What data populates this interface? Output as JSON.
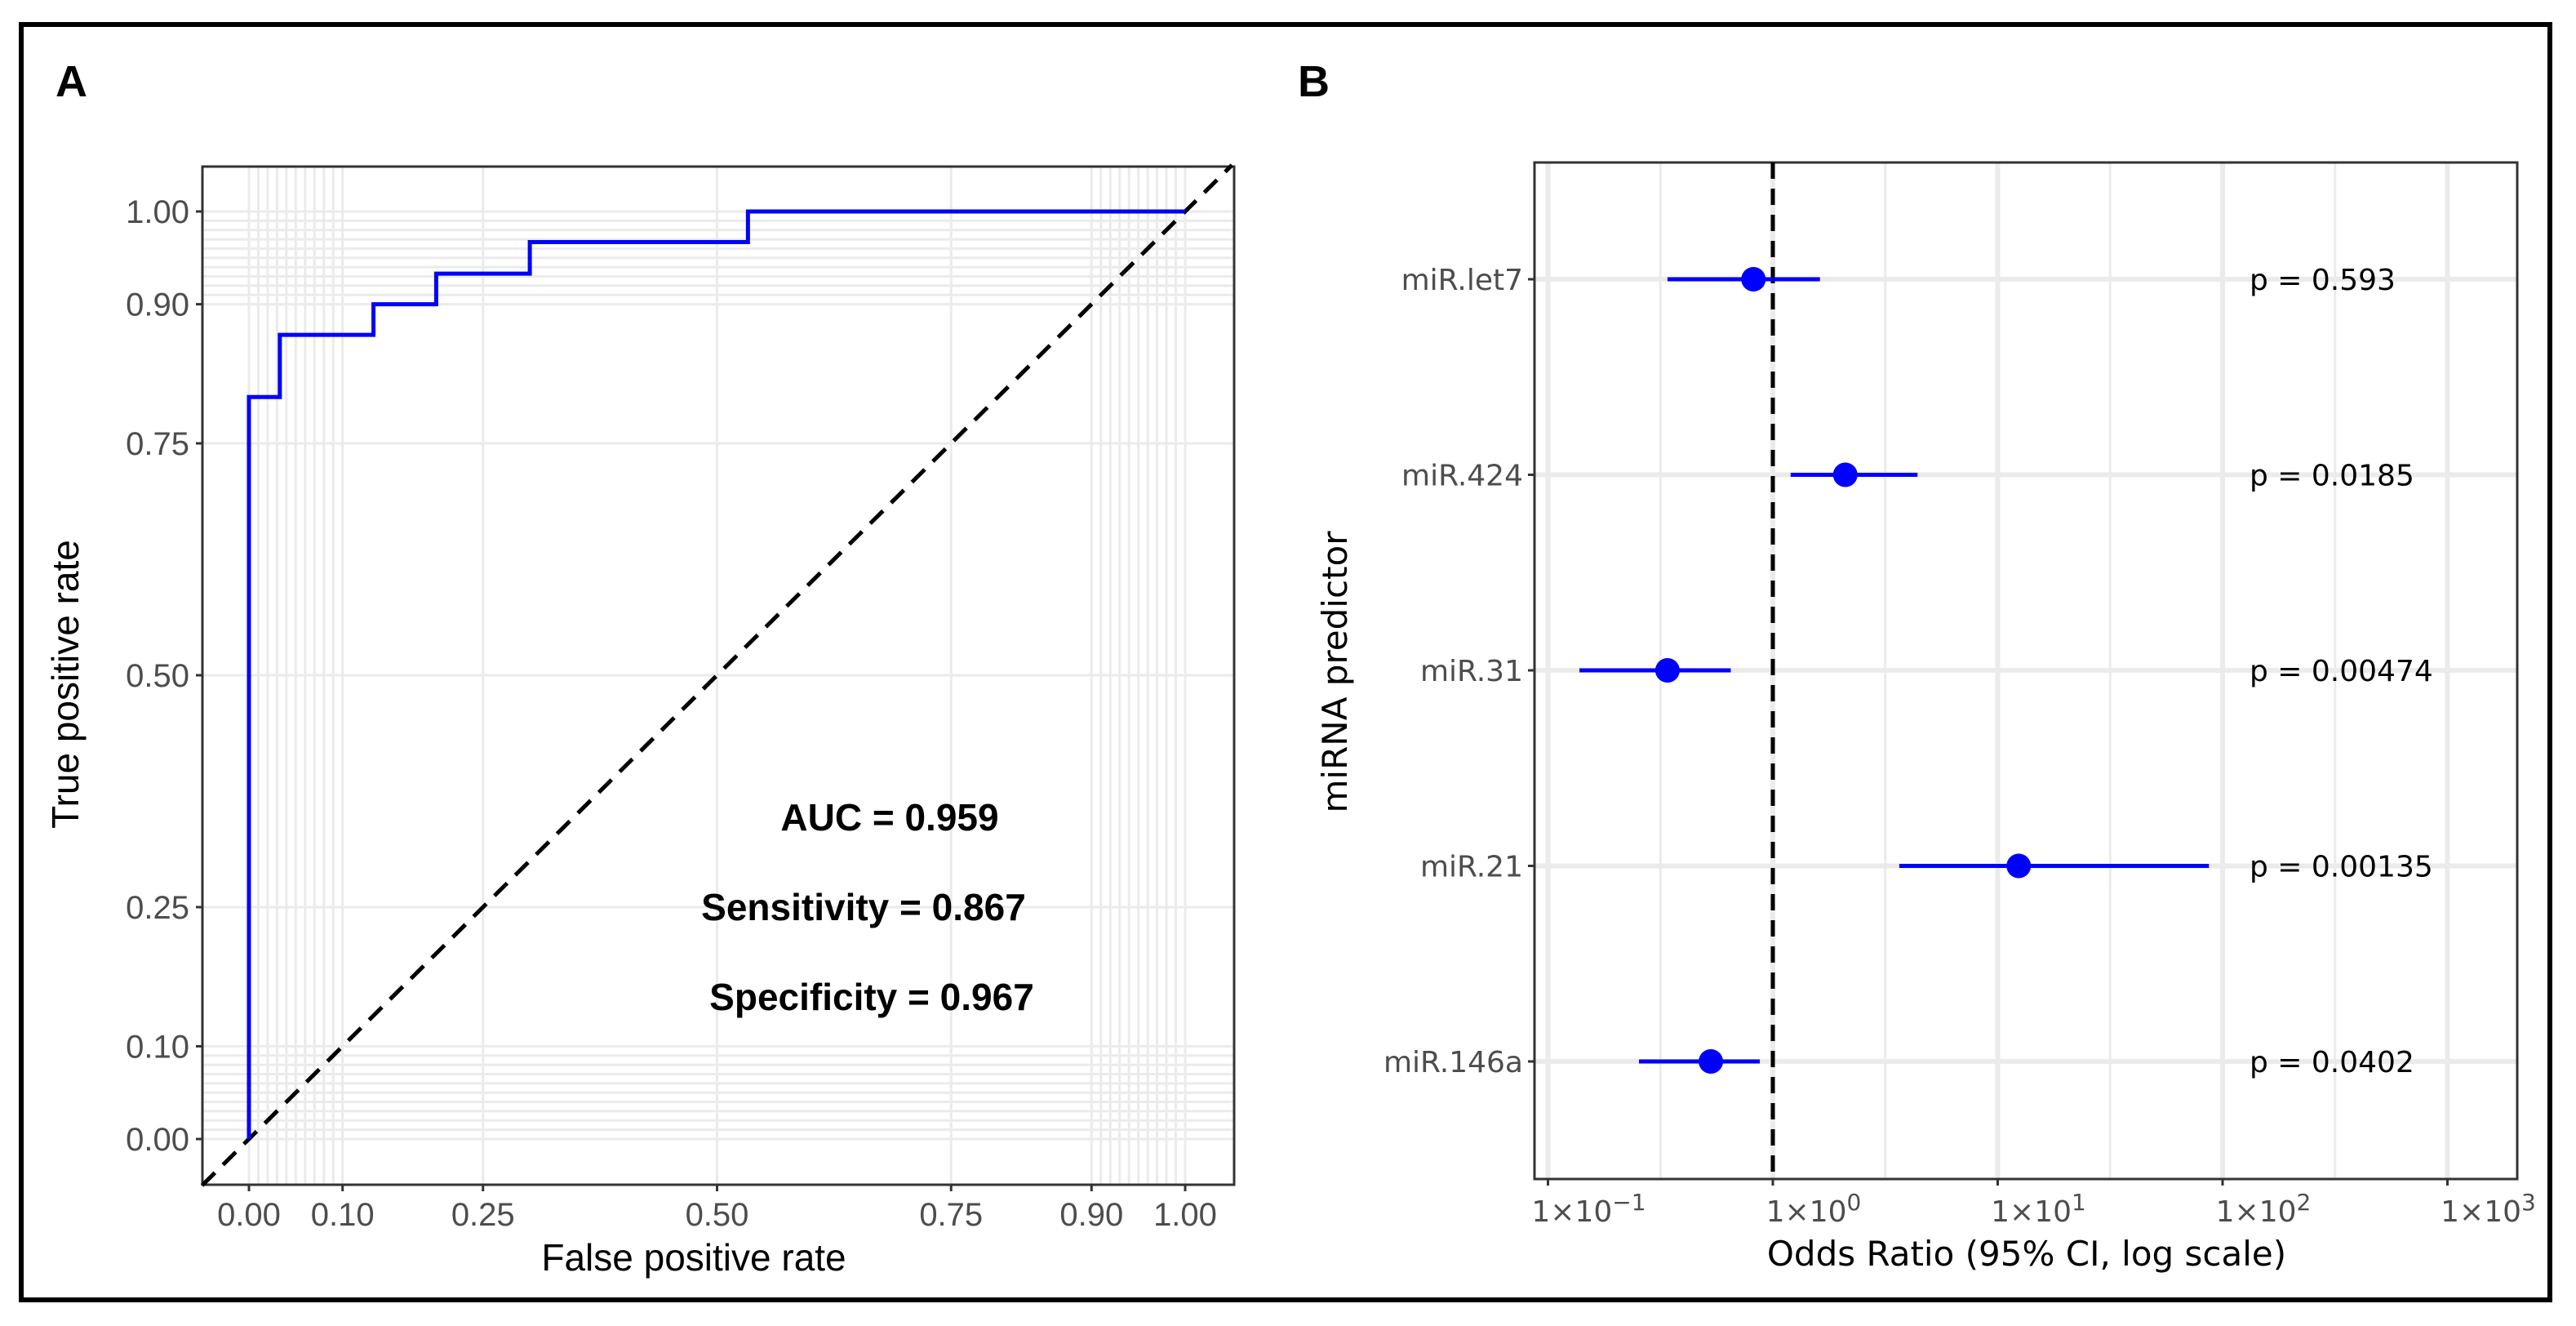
{
  "panel_labels": {
    "a": "A",
    "b": "B"
  },
  "chart_data": [
    {
      "panel": "A",
      "type": "line",
      "xlabel": "False positive rate",
      "ylabel": "True positive rate",
      "xlim": [
        -0.05,
        1.05
      ],
      "ylim": [
        -0.05,
        1.05
      ],
      "xticks": [
        0,
        0.1,
        0.25,
        0.5,
        0.75,
        0.9,
        1
      ],
      "xtick_labels": [
        "0.00",
        "0.10",
        "0.25",
        "0.50",
        "0.75",
        "0.90",
        "1.00"
      ],
      "yticks": [
        0,
        0.1,
        0.25,
        0.5,
        0.75,
        0.9,
        1
      ],
      "ytick_labels": [
        "0.00",
        "0.10",
        "0.25",
        "0.50",
        "0.75",
        "0.90",
        "1.00"
      ],
      "grid": true,
      "minor_grid": [
        0,
        0.01,
        0.02,
        0.03,
        0.04,
        0.05,
        0.06,
        0.07,
        0.08,
        0.09,
        0.1,
        0.25,
        0.5,
        0.75,
        0.9,
        0.91,
        0.92,
        0.93,
        0.94,
        0.95,
        0.96,
        0.97,
        0.98,
        0.99,
        1
      ],
      "series": [
        {
          "name": "ROC",
          "color": "#0000ff",
          "style": "step",
          "x": [
            0,
            0,
            0.033,
            0.033,
            0.133,
            0.133,
            0.2,
            0.2,
            0.3,
            0.3,
            0.533,
            0.533,
            1
          ],
          "y": [
            0,
            0.8,
            0.8,
            0.867,
            0.867,
            0.9,
            0.9,
            0.933,
            0.933,
            0.967,
            0.967,
            1,
            1
          ]
        },
        {
          "name": "reference",
          "color": "#000000",
          "style": "dashed",
          "x": [
            -0.05,
            1.05
          ],
          "y": [
            -0.05,
            1.05
          ]
        }
      ],
      "annotations": [
        "AUC = 0.959",
        "Sensitivity = 0.867",
        "Specificity = 0.967"
      ]
    },
    {
      "panel": "B",
      "type": "scatter",
      "subtype": "forest",
      "xlabel": "Odds Ratio (95% CI, log scale)",
      "ylabel": "miRNA predictor",
      "xscale": "log10",
      "xlim": [
        0.0875,
        2000
      ],
      "xticks": [
        0.1,
        1,
        10,
        100,
        1000
      ],
      "xtick_labels": [
        {
          "base": "1×10",
          "exp": "−1"
        },
        {
          "base": "1×10",
          "exp": "0"
        },
        {
          "base": "1×10",
          "exp": "1"
        },
        {
          "base": "1×10",
          "exp": "2"
        },
        {
          "base": "1×10",
          "exp": "3"
        }
      ],
      "reference_line": 1,
      "color": "#0000ff",
      "categories": [
        "miR.let7",
        "miR.424",
        "miR.31",
        "miR.21",
        "miR.146a"
      ],
      "odds_ratio": [
        0.82,
        2.1,
        0.34,
        12.4,
        0.53
      ],
      "ci_low": [
        0.34,
        1.2,
        0.138,
        3.65,
        0.254
      ],
      "ci_high": [
        1.62,
        4.4,
        0.65,
        87,
        0.875
      ],
      "p_labels": [
        "p = 0.593",
        "p = 0.0185",
        "p = 0.00474",
        "p = 0.00135",
        "p = 0.0402"
      ]
    }
  ]
}
